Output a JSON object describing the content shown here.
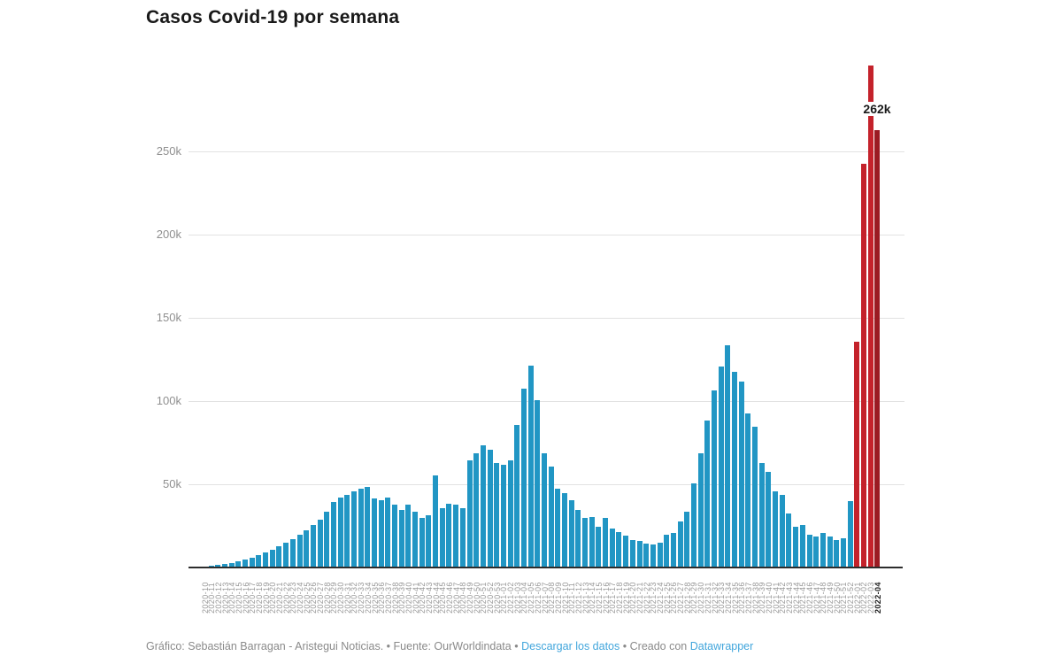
{
  "page": {
    "title": "Casos Covid-19 por semana"
  },
  "annotation": {
    "text": "262k"
  },
  "footer": {
    "credit": "Gráfico: Sebastián Barragan - Aristegui Noticias.",
    "bullet1": "•",
    "source_label": "Fuente: OurWorldindata",
    "bullet2": "•",
    "download_link": "Descargar los datos",
    "bullet3": "•",
    "created_label": "Creado con",
    "datawrapper_link": "Datawrapper"
  },
  "colors": {
    "bar_default": "#2196c4",
    "bar_highlight": "#c4222b",
    "bar_highlight_dark": "#9b1b23",
    "link": "#42a6dc",
    "gridline": "#e2e2e2",
    "baseline": "#2d2d2d"
  },
  "chart_data": {
    "type": "bar",
    "title": "Casos Covid-19 por semana",
    "xlabel": "",
    "ylabel": "",
    "unit_suffix": "k",
    "ylim_k": [
      0,
      310
    ],
    "grid": true,
    "legend": "none",
    "ytick_values_k": [
      50,
      100,
      150,
      200,
      250
    ],
    "ytick_labels": [
      "50k",
      "100k",
      "150k",
      "200k",
      "250k"
    ],
    "highlight_start_index": 96,
    "dark_highlight_index": 99,
    "bold_xlabel_index": 99,
    "annotation": {
      "text": "262k",
      "target_week": "2022-04",
      "value_k": 262
    },
    "categories": [
      "2020-10",
      "2020-11",
      "2020-12",
      "2020-13",
      "2020-14",
      "2020-15",
      "2020-16",
      "2020-17",
      "2020-18",
      "2020-19",
      "2020-20",
      "2020-21",
      "2020-22",
      "2020-23",
      "2020-24",
      "2020-25",
      "2020-26",
      "2020-27",
      "2020-28",
      "2020-29",
      "2020-30",
      "2020-31",
      "2020-32",
      "2020-33",
      "2020-34",
      "2020-35",
      "2020-36",
      "2020-37",
      "2020-38",
      "2020-39",
      "2020-40",
      "2020-41",
      "2020-42",
      "2020-43",
      "2020-44",
      "2020-45",
      "2020-46",
      "2020-47",
      "2020-48",
      "2020-49",
      "2020-50",
      "2020-51",
      "2020-52",
      "2020-53",
      "2021-01",
      "2021-02",
      "2021-03",
      "2021-04",
      "2021-05",
      "2021-06",
      "2021-07",
      "2021-08",
      "2021-09",
      "2021-10",
      "2021-11",
      "2021-12",
      "2021-13",
      "2021-14",
      "2021-15",
      "2021-16",
      "2021-17",
      "2021-18",
      "2021-19",
      "2021-20",
      "2021-21",
      "2021-22",
      "2021-23",
      "2021-24",
      "2021-25",
      "2021-26",
      "2021-27",
      "2021-28",
      "2021-29",
      "2021-30",
      "2021-31",
      "2021-32",
      "2021-33",
      "2021-34",
      "2021-35",
      "2021-36",
      "2021-37",
      "2021-38",
      "2021-39",
      "2021-40",
      "2021-41",
      "2021-42",
      "2021-43",
      "2021-44",
      "2021-45",
      "2021-46",
      "2021-47",
      "2021-48",
      "2021-49",
      "2021-50",
      "2021-51",
      "2021-52",
      "2022-01",
      "2022-02",
      "2022-03",
      "2022-04"
    ],
    "values_k": [
      0.2,
      0.4,
      0.8,
      1.5,
      2,
      3,
      4,
      5.5,
      7,
      8.5,
      10,
      12,
      14.5,
      16.5,
      19,
      22,
      25,
      28,
      33,
      39,
      41.5,
      43,
      45,
      47,
      48,
      41,
      40,
      41.5,
      37,
      34,
      37,
      33,
      29,
      31,
      55,
      35,
      38,
      37,
      35,
      64,
      68,
      73,
      70,
      62,
      61,
      64,
      85,
      107,
      121,
      100,
      68,
      60,
      47,
      44,
      40,
      34,
      29,
      30,
      24,
      29,
      23,
      21,
      18.5,
      16,
      15.5,
      14,
      13.5,
      14.5,
      19,
      20,
      27,
      33,
      50,
      68,
      88,
      106,
      120,
      133,
      117,
      111,
      92,
      84,
      62,
      57,
      45,
      43,
      32,
      24,
      25,
      19,
      18,
      20,
      18,
      16,
      17,
      39.5,
      135,
      242,
      301,
      262
    ]
  }
}
